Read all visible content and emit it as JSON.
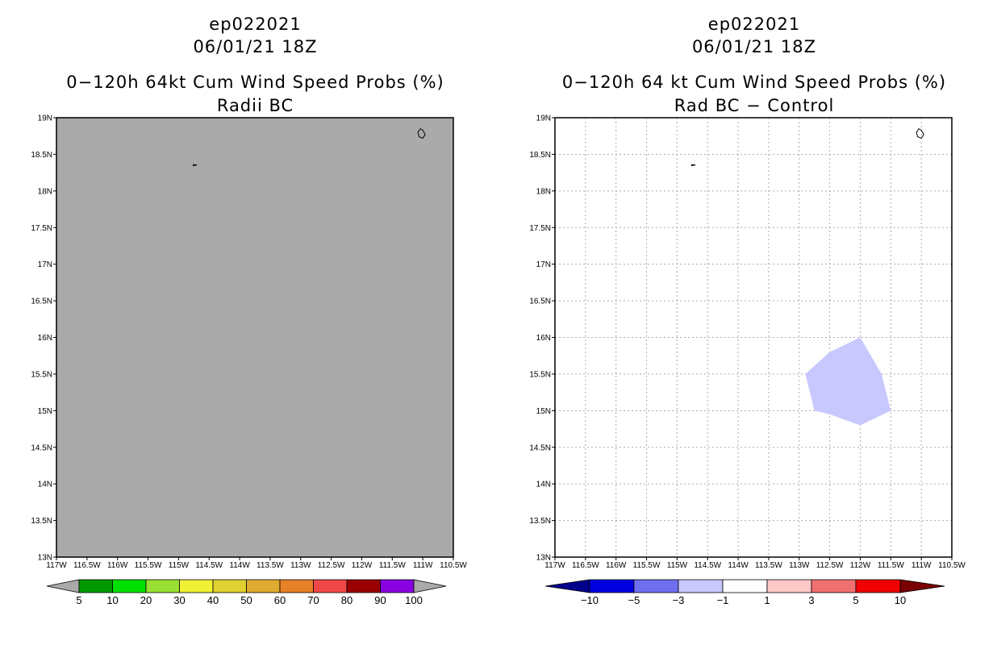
{
  "chart_data": [
    {
      "type": "heatmap",
      "storm_id": "ep022021",
      "datetime": "06/01/21 18Z",
      "title": "0−120h 64kt Cum Wind Speed Probs (%)",
      "subtitle": "Radii BC",
      "xlim": [
        -117,
        -110.5
      ],
      "ylim": [
        13,
        19
      ],
      "xticks": [
        {
          "v": -117,
          "label": "117W"
        },
        {
          "v": -116.5,
          "label": "116.5W"
        },
        {
          "v": -116,
          "label": "116W"
        },
        {
          "v": -115.5,
          "label": "115.5W"
        },
        {
          "v": -115,
          "label": "115W"
        },
        {
          "v": -114.5,
          "label": "114.5W"
        },
        {
          "v": -114,
          "label": "114W"
        },
        {
          "v": -113.5,
          "label": "113.5W"
        },
        {
          "v": -113,
          "label": "113W"
        },
        {
          "v": -112.5,
          "label": "112.5W"
        },
        {
          "v": -112,
          "label": "112W"
        },
        {
          "v": -111.5,
          "label": "111.5W"
        },
        {
          "v": -111,
          "label": "111W"
        },
        {
          "v": -110.5,
          "label": "110.5W"
        }
      ],
      "yticks": [
        {
          "v": 19,
          "label": "19N"
        },
        {
          "v": 18.5,
          "label": "18.5N"
        },
        {
          "v": 18,
          "label": "18N"
        },
        {
          "v": 17.5,
          "label": "17.5N"
        },
        {
          "v": 17,
          "label": "17N"
        },
        {
          "v": 16.5,
          "label": "16.5N"
        },
        {
          "v": 16,
          "label": "16N"
        },
        {
          "v": 15.5,
          "label": "15.5N"
        },
        {
          "v": 15,
          "label": "15N"
        },
        {
          "v": 14.5,
          "label": "14.5N"
        },
        {
          "v": 14,
          "label": "14N"
        },
        {
          "v": 13.5,
          "label": "13.5N"
        },
        {
          "v": 13,
          "label": "13N"
        }
      ],
      "background_color": "#aaaaaa",
      "grid": false,
      "filled_regions": [],
      "islands": [
        {
          "name": "island-small",
          "points": [
            [
              -114.76,
              18.36
            ],
            [
              -114.7,
              18.355
            ],
            [
              -114.76,
              18.345
            ]
          ]
        },
        {
          "name": "island-large",
          "points": [
            [
              -111.04,
              18.85
            ],
            [
              -111,
              18.83
            ],
            [
              -110.96,
              18.77
            ],
            [
              -111.0,
              18.72
            ],
            [
              -111.06,
              18.74
            ],
            [
              -111.08,
              18.8
            ]
          ]
        }
      ],
      "colorbar": {
        "left_arrow": "#aaaaaa",
        "right_arrow": "#aaaaaa",
        "colors": [
          "#009900",
          "#00e000",
          "#99e033",
          "#f0f035",
          "#e0d030",
          "#e0ab30",
          "#e88028",
          "#f04848",
          "#990000",
          "#8a00e0"
        ],
        "labels": [
          "5",
          "10",
          "20",
          "30",
          "40",
          "50",
          "60",
          "70",
          "80",
          "90",
          "100"
        ]
      }
    },
    {
      "type": "heatmap",
      "storm_id": "ep022021",
      "datetime": "06/01/21 18Z",
      "title": "0−120h 64 kt Cum Wind Speed Probs (%)",
      "subtitle": "Rad BC − Control",
      "xlim": [
        -117,
        -110.5
      ],
      "ylim": [
        13,
        19
      ],
      "xticks": [
        {
          "v": -117,
          "label": "117W"
        },
        {
          "v": -116.5,
          "label": "116.5W"
        },
        {
          "v": -116,
          "label": "116W"
        },
        {
          "v": -115.5,
          "label": "115.5W"
        },
        {
          "v": -115,
          "label": "115W"
        },
        {
          "v": -114.5,
          "label": "114.5W"
        },
        {
          "v": -114,
          "label": "114W"
        },
        {
          "v": -113.5,
          "label": "113.5W"
        },
        {
          "v": -113,
          "label": "113W"
        },
        {
          "v": -112.5,
          "label": "112.5W"
        },
        {
          "v": -112,
          "label": "112W"
        },
        {
          "v": -111.5,
          "label": "111.5W"
        },
        {
          "v": -111,
          "label": "111W"
        },
        {
          "v": -110.5,
          "label": "110.5W"
        }
      ],
      "yticks": [
        {
          "v": 19,
          "label": "19N"
        },
        {
          "v": 18.5,
          "label": "18.5N"
        },
        {
          "v": 18,
          "label": "18N"
        },
        {
          "v": 17.5,
          "label": "17.5N"
        },
        {
          "v": 17,
          "label": "17N"
        },
        {
          "v": 16.5,
          "label": "16.5N"
        },
        {
          "v": 16,
          "label": "16N"
        },
        {
          "v": 15.5,
          "label": "15.5N"
        },
        {
          "v": 15,
          "label": "15N"
        },
        {
          "v": 14.5,
          "label": "14.5N"
        },
        {
          "v": 14,
          "label": "14N"
        },
        {
          "v": 13.5,
          "label": "13.5N"
        },
        {
          "v": 13,
          "label": "13N"
        }
      ],
      "background_color": "#ffffff",
      "grid": true,
      "filled_regions": [
        {
          "name": "diff-region-minus3",
          "color": "#c8c8ff",
          "points": [
            [
              -112.9,
              15.5
            ],
            [
              -112.5,
              15.8
            ],
            [
              -112,
              16
            ],
            [
              -111.65,
              15.5
            ],
            [
              -111.5,
              15
            ],
            [
              -112,
              14.8
            ],
            [
              -112.5,
              14.95
            ],
            [
              -112.75,
              15.0
            ]
          ]
        }
      ],
      "islands": [
        {
          "name": "island-small",
          "points": [
            [
              -114.76,
              18.36
            ],
            [
              -114.7,
              18.355
            ],
            [
              -114.76,
              18.345
            ]
          ]
        },
        {
          "name": "island-large",
          "points": [
            [
              -111.04,
              18.85
            ],
            [
              -111,
              18.83
            ],
            [
              -110.96,
              18.77
            ],
            [
              -111.0,
              18.72
            ],
            [
              -111.06,
              18.74
            ],
            [
              -111.08,
              18.8
            ]
          ]
        }
      ],
      "colorbar": {
        "left_arrow": "#00008b",
        "right_arrow": "#7a0000",
        "colors": [
          "#0000e0",
          "#6e6ef0",
          "#c8c8ff",
          "#ffffff",
          "#ffc8c8",
          "#f07070",
          "#f00000"
        ],
        "labels": [
          "−10",
          "−5",
          "−3",
          "−1",
          "1",
          "3",
          "5",
          "10"
        ]
      }
    }
  ]
}
